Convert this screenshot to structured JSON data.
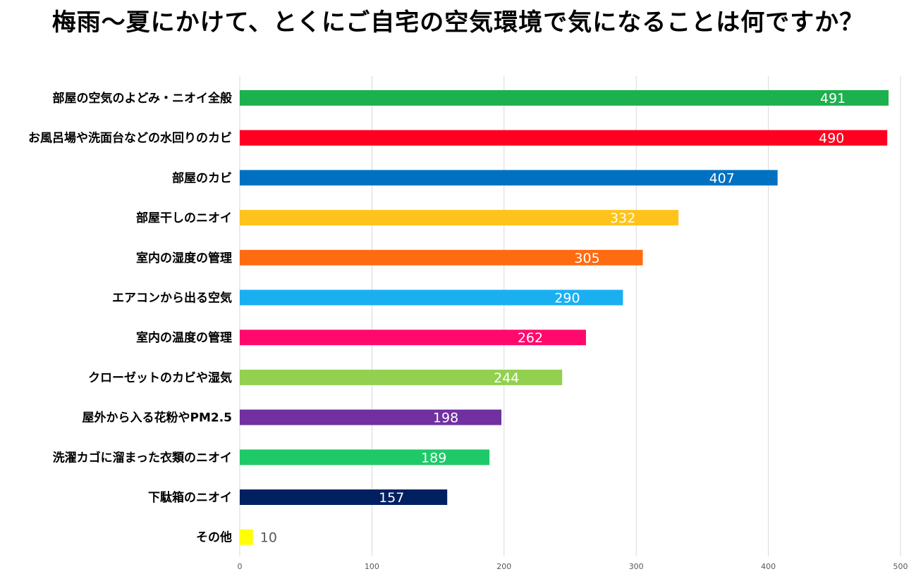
{
  "chart_data": {
    "type": "bar",
    "orientation": "horizontal",
    "title": "梅雨～夏にかけて、とくにご自宅の空気環境で気になることは何ですか？",
    "categories": [
      "部屋の空気のよどみ・ニオイ全般",
      "お風呂場や洗面台などの水回りのカビ",
      "部屋のカビ",
      "部屋干しのニオイ",
      "室内の湿度の管理",
      "エアコンから出る空気",
      "室内の温度の管理",
      "クローゼットのカビや湿気",
      "屋外から入る花粉やPM2.5",
      "洗濯カゴに溜まった衣類のニオイ",
      "下駄箱のニオイ",
      "その他"
    ],
    "values": [
      491,
      490,
      407,
      332,
      305,
      290,
      262,
      244,
      198,
      189,
      157,
      10
    ],
    "bar_colors": [
      "#1db04e",
      "#ff0020",
      "#0070c0",
      "#ffc31c",
      "#ff6b11",
      "#1aaff0",
      "#ff0a6c",
      "#92d050",
      "#7030a0",
      "#1ec967",
      "#002060",
      "#ffff00"
    ],
    "label_colors": [
      "#ffffff",
      "#ffffff",
      "#ffffff",
      "#ffffff",
      "#ffffff",
      "#ffffff",
      "#ffffff",
      "#ffffff",
      "#ffffff",
      "#ffffff",
      "#ffffff",
      "#595959"
    ],
    "x_ticks": [
      0,
      100,
      200,
      300,
      400,
      500
    ],
    "xlim": [
      0,
      500
    ],
    "grid": true,
    "legend": "none"
  }
}
